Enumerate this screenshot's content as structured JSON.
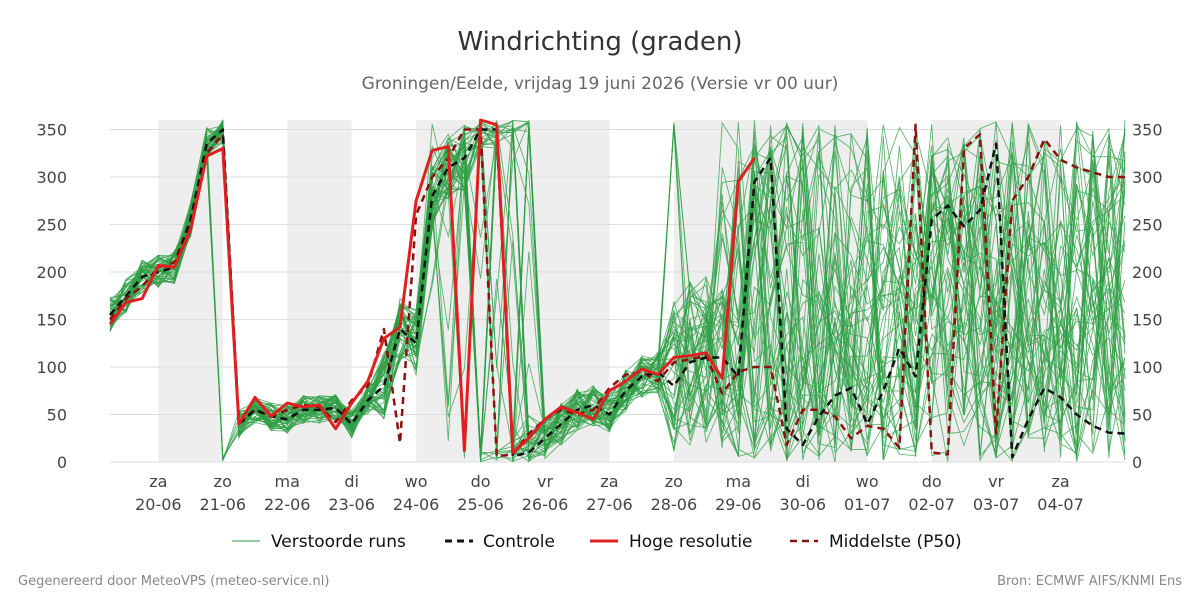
{
  "chart_data": {
    "type": "line",
    "title": "Windrichting (graden)",
    "subtitle": "Groningen/Eelde, vrijdag 19 juni 2026 (Versie vr 00 uur)",
    "ylim": [
      0,
      360
    ],
    "y_ticks": [
      0,
      50,
      100,
      150,
      200,
      250,
      300,
      350
    ],
    "x_range_days": [
      -0.75,
      15
    ],
    "x_ticks": [
      {
        "day": "za",
        "date": "20-06"
      },
      {
        "day": "zo",
        "date": "21-06"
      },
      {
        "day": "ma",
        "date": "22-06"
      },
      {
        "day": "di",
        "date": "23-06"
      },
      {
        "day": "wo",
        "date": "24-06"
      },
      {
        "day": "do",
        "date": "25-06"
      },
      {
        "day": "vr",
        "date": "26-06"
      },
      {
        "day": "za",
        "date": "27-06"
      },
      {
        "day": "zo",
        "date": "28-06"
      },
      {
        "day": "ma",
        "date": "29-06"
      },
      {
        "day": "di",
        "date": "30-06"
      },
      {
        "day": "wo",
        "date": "01-07"
      },
      {
        "day": "do",
        "date": "02-07"
      },
      {
        "day": "vr",
        "date": "03-07"
      },
      {
        "day": "za",
        "date": "04-07"
      }
    ],
    "weekend_bands": [
      [
        0,
        1
      ],
      [
        2,
        3
      ],
      [
        4,
        7
      ],
      [
        8,
        11
      ],
      [
        12,
        14
      ]
    ],
    "grid": true,
    "legend_position": "bottom",
    "series": [
      {
        "name": "Controle",
        "style": "dashed",
        "color": "#111111",
        "x": [
          -0.75,
          -0.5,
          -0.25,
          0,
          0.25,
          0.5,
          0.75,
          1,
          1.25,
          1.5,
          1.75,
          2,
          2.25,
          2.5,
          2.75,
          3,
          3.25,
          3.5,
          3.75,
          4,
          4.25,
          4.5,
          4.75,
          5,
          5.25,
          5.5,
          5.75,
          6,
          6.25,
          6.5,
          6.75,
          7,
          7.25,
          7.5,
          7.75,
          8,
          8.25,
          8.5,
          8.75,
          9,
          9.25,
          9.5,
          9.75,
          10,
          10.25,
          10.5,
          10.75,
          11,
          11.25,
          11.5,
          11.75,
          12,
          12.25,
          12.5,
          12.75,
          13,
          13.25,
          13.5,
          13.75,
          14,
          14.25,
          14.5,
          14.75,
          15
        ],
        "values": [
          155,
          175,
          195,
          200,
          205,
          255,
          335,
          350,
          40,
          55,
          48,
          45,
          55,
          55,
          57,
          40,
          65,
          80,
          140,
          125,
          280,
          310,
          320,
          350,
          350,
          6,
          10,
          25,
          40,
          55,
          60,
          50,
          75,
          90,
          95,
          80,
          105,
          110,
          110,
          90,
          295,
          320,
          35,
          18,
          48,
          70,
          78,
          40,
          75,
          120,
          90,
          255,
          270,
          248,
          265,
          335,
          5,
          45,
          78,
          68,
          50,
          38,
          31,
          30
        ]
      },
      {
        "name": "Hoge resolutie",
        "style": "solid",
        "color": "#e02020",
        "x": [
          -0.75,
          -0.5,
          -0.25,
          0,
          0.25,
          0.5,
          0.75,
          1,
          1.25,
          1.5,
          1.75,
          2,
          2.25,
          2.5,
          2.75,
          3,
          3.25,
          3.5,
          3.75,
          4,
          4.25,
          4.5,
          4.75,
          5,
          5.25,
          5.5,
          5.75,
          6,
          6.25,
          6.5,
          6.75,
          7,
          7.25,
          7.5,
          7.75,
          8,
          8.25,
          8.5,
          8.75,
          9,
          9.25
        ],
        "values": [
          145,
          168,
          172,
          207,
          205,
          245,
          322,
          330,
          40,
          68,
          48,
          62,
          58,
          60,
          35,
          62,
          85,
          130,
          142,
          275,
          328,
          332,
          12,
          360,
          355,
          10,
          25,
          45,
          58,
          52,
          45,
          75,
          85,
          98,
          92,
          110,
          112,
          115,
          88,
          295,
          320
        ]
      },
      {
        "name": "Middelste (P50)",
        "style": "dashed",
        "color": "#8b1010",
        "x": [
          -0.75,
          -0.5,
          -0.25,
          0,
          0.25,
          0.5,
          0.75,
          1,
          1.25,
          1.5,
          1.75,
          2,
          2.25,
          2.5,
          2.75,
          3,
          3.25,
          3.5,
          3.75,
          4,
          4.25,
          4.5,
          4.75,
          5,
          5.25,
          5.5,
          5.75,
          6,
          6.25,
          6.5,
          6.75,
          7,
          7.25,
          7.5,
          7.75,
          8,
          8.25,
          8.5,
          8.75,
          9,
          9.25,
          9.5,
          9.75,
          10,
          10.25,
          10.5,
          10.75,
          11,
          11.25,
          11.5,
          11.75,
          12,
          12.25,
          12.5,
          12.75,
          13,
          13.25,
          13.5,
          13.75,
          14,
          14.25,
          14.5,
          14.75,
          15
        ],
        "values": [
          150,
          172,
          185,
          205,
          210,
          255,
          325,
          345,
          42,
          55,
          48,
          55,
          60,
          58,
          42,
          65,
          80,
          140,
          20,
          260,
          300,
          320,
          350,
          350,
          6,
          8,
          30,
          45,
          55,
          50,
          55,
          78,
          92,
          95,
          85,
          105,
          108,
          112,
          72,
          95,
          100,
          100,
          18,
          55,
          55,
          48,
          25,
          38,
          35,
          15,
          355,
          10,
          8,
          330,
          345,
          30,
          275,
          300,
          340,
          318,
          310,
          305,
          300,
          300
        ]
      }
    ]
  },
  "legend": {
    "runs": "Verstoorde runs",
    "control": "Controle",
    "hires": "Hoge resolutie",
    "median": "Middelste (P50)"
  },
  "footer": {
    "left": "Gegenereerd door MeteoVPS (meteo-service.nl)",
    "right": "Bron: ECMWF AIFS/KNMI Ens"
  },
  "colors": {
    "ensemble": "#2e9e44",
    "band": "#eeeeee",
    "grid": "#dddddd"
  }
}
